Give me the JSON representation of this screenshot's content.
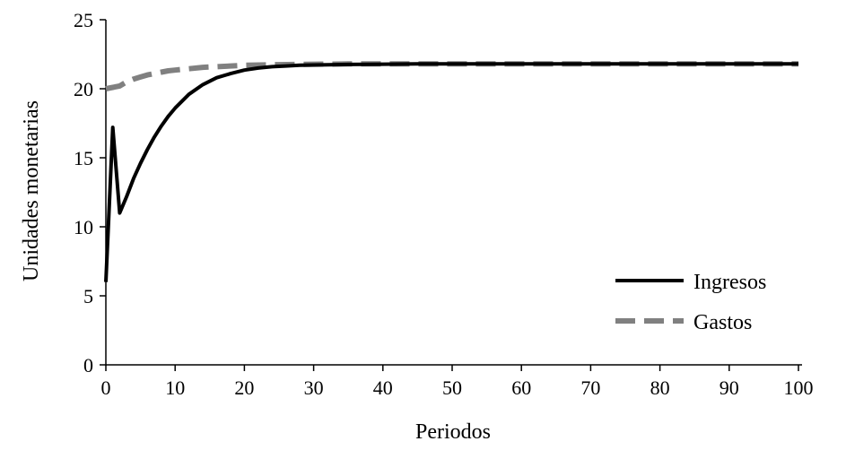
{
  "chart_data": {
    "type": "line",
    "xlabel": "Periodos",
    "ylabel": "Unidades monetarias",
    "xlim": [
      0,
      100
    ],
    "ylim": [
      0,
      25
    ],
    "x_ticks": [
      0,
      10,
      20,
      30,
      40,
      50,
      60,
      70,
      80,
      90,
      100
    ],
    "y_ticks": [
      0,
      5,
      10,
      15,
      20,
      25
    ],
    "grid": false,
    "legend_position": "bottom-right",
    "series": [
      {
        "name": "Ingresos",
        "color": "#000000",
        "style": "solid",
        "x": [
          0,
          1,
          2,
          3,
          4,
          5,
          6,
          7,
          8,
          9,
          10,
          12,
          14,
          16,
          18,
          20,
          22,
          24,
          26,
          28,
          30,
          35,
          40,
          45,
          50,
          60,
          70,
          80,
          90,
          100
        ],
        "y": [
          6,
          17.2,
          11,
          12.2,
          13.5,
          14.6,
          15.6,
          16.5,
          17.3,
          18.0,
          18.6,
          19.6,
          20.3,
          20.8,
          21.1,
          21.35,
          21.5,
          21.6,
          21.65,
          21.7,
          21.72,
          21.76,
          21.78,
          21.8,
          21.8,
          21.8,
          21.8,
          21.8,
          21.8,
          21.8
        ]
      },
      {
        "name": "Gastos",
        "color": "#808080",
        "style": "dashed",
        "x": [
          0,
          1,
          2,
          3,
          4,
          5,
          6,
          7,
          8,
          9,
          10,
          12,
          14,
          16,
          18,
          20,
          25,
          30,
          35,
          40,
          50,
          60,
          70,
          80,
          90,
          100
        ],
        "y": [
          20.0,
          20.1,
          20.2,
          20.5,
          20.7,
          20.85,
          21.0,
          21.1,
          21.2,
          21.3,
          21.35,
          21.45,
          21.55,
          21.6,
          21.65,
          21.7,
          21.75,
          21.78,
          21.8,
          21.8,
          21.8,
          21.8,
          21.8,
          21.8,
          21.8,
          21.8
        ]
      }
    ]
  }
}
